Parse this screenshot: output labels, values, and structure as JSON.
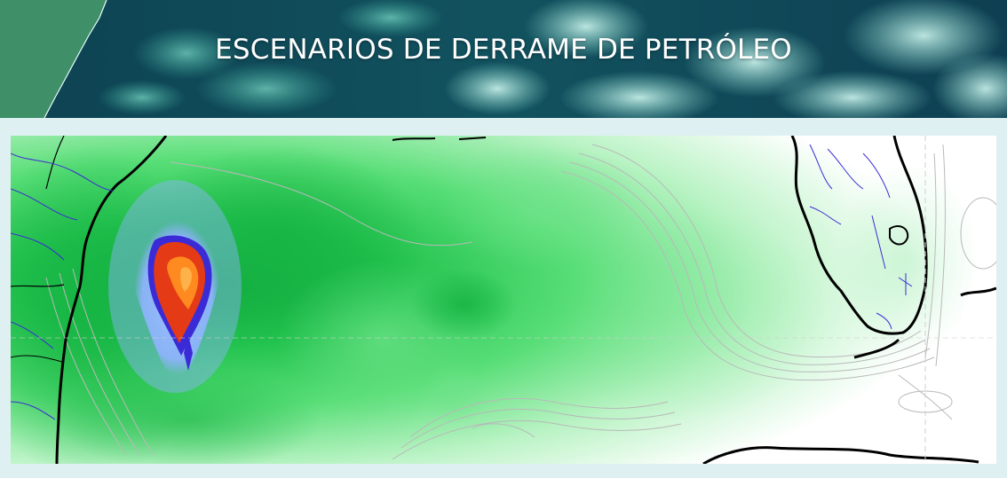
{
  "header": {
    "title": "ESCENARIOS DE DERRAME DE PETRÓLEO"
  },
  "map": {
    "colors": {
      "land_line": "#000000",
      "river": "#3b2bd6",
      "bathymetry": "#b9b9b9",
      "probability_low": "#c9f7cf",
      "probability_mid": "#39d760",
      "probability_high": "#0ea53a",
      "halo": "#8fb3ff",
      "core_outer": "#e53a16",
      "core_inner": "#ff8a1f",
      "banner_sea": "#0f4a5a",
      "banner_land": "#3f8f68"
    }
  }
}
